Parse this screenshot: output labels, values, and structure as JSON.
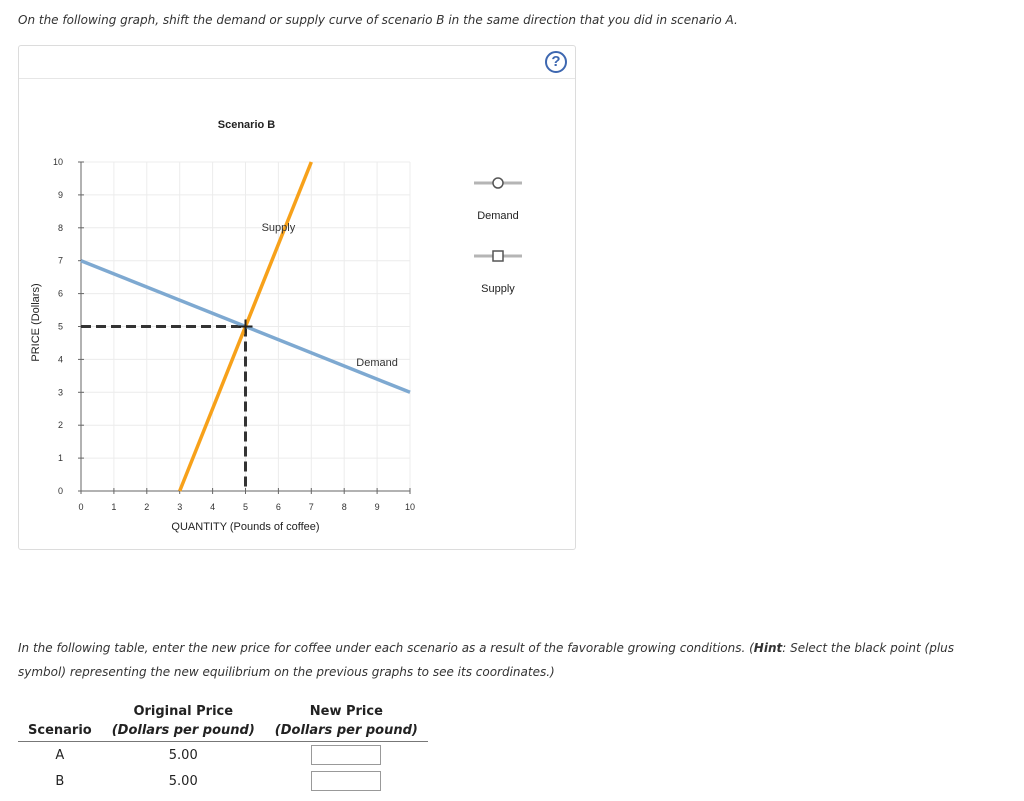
{
  "instructions": {
    "top": "On the following graph, shift the demand or supply curve of scenario B in the same direction that you did in scenario A.",
    "table_intro_part1": "In the following table, enter the new price for coffee under each scenario as a result of the favorable growing conditions. (",
    "table_intro_hint": "Hint",
    "table_intro_part2": ": Select the black point (plus symbol) representing the new equilibrium on the previous graphs to see its coordinates.)"
  },
  "help_icon": "?",
  "chart_data": {
    "type": "line",
    "title": "Scenario B",
    "xlabel": "QUANTITY (Pounds of coffee)",
    "ylabel": "PRICE (Dollars)",
    "xlim": [
      0,
      10
    ],
    "ylim": [
      0,
      10
    ],
    "x_ticks": [
      "0",
      "1",
      "2",
      "3",
      "4",
      "5",
      "6",
      "7",
      "8",
      "9",
      "10"
    ],
    "y_ticks": [
      "0",
      "1",
      "2",
      "3",
      "4",
      "5",
      "6",
      "7",
      "8",
      "9",
      "10"
    ],
    "grid": true,
    "series": [
      {
        "name": "Demand",
        "color": "#7ea9d1",
        "points": [
          [
            0,
            7
          ],
          [
            10,
            3
          ]
        ],
        "label_at": [
          9,
          3.8
        ]
      },
      {
        "name": "Supply",
        "color": "#f7a11a",
        "points": [
          [
            3,
            0
          ],
          [
            7,
            10
          ]
        ],
        "label_at": [
          6,
          7.9
        ]
      }
    ],
    "equilibrium": {
      "x": 5,
      "y": 5,
      "marker": "plus",
      "guide_color": "#333333"
    },
    "legend": {
      "placement": "right",
      "items": [
        {
          "label": "Demand",
          "marker": "circle",
          "icon": "circle-line-icon"
        },
        {
          "label": "Supply",
          "marker": "square",
          "icon": "square-line-icon"
        }
      ]
    }
  },
  "table": {
    "headers_row1": [
      "",
      "Original Price",
      "New Price"
    ],
    "headers_row2": [
      "Scenario",
      "(Dollars per pound)",
      "(Dollars per pound)"
    ],
    "rows": [
      {
        "scenario": "A",
        "original_price": "5.00",
        "new_price": ""
      },
      {
        "scenario": "B",
        "original_price": "5.00",
        "new_price": ""
      }
    ]
  }
}
